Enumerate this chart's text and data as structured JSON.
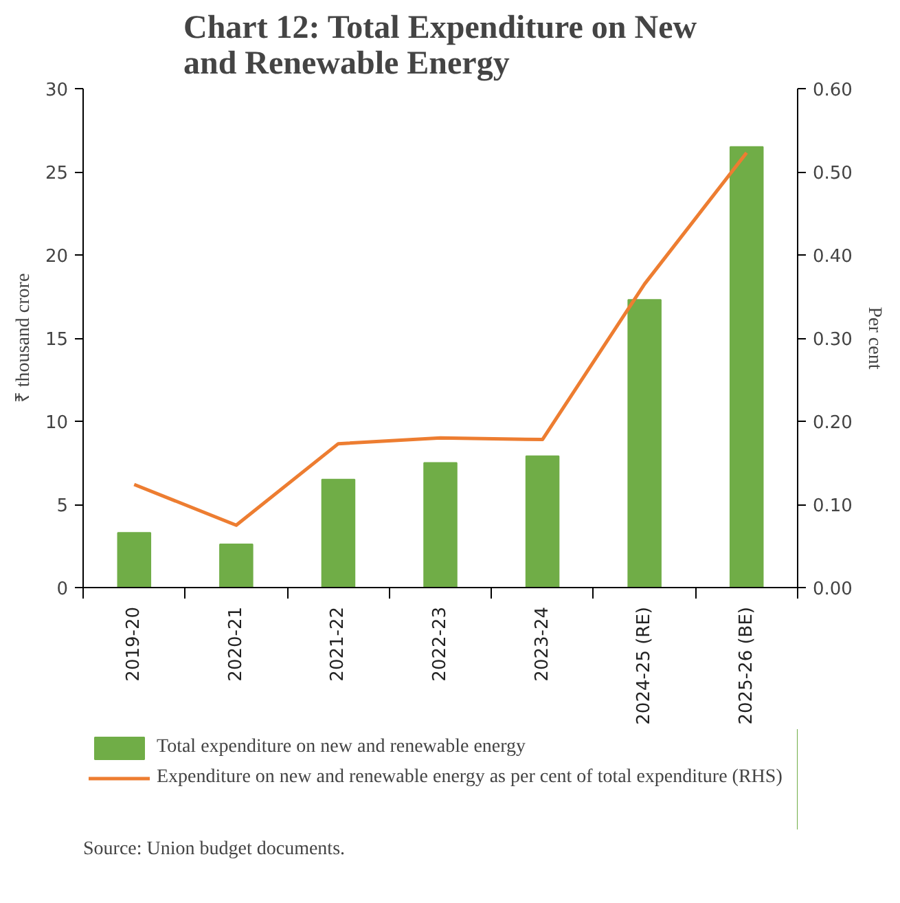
{
  "chart_data": {
    "type": "bar",
    "title": "Chart 12: Total Expenditure on New and Renewable Energy",
    "categories": [
      "2019-20",
      "2020-21",
      "2021-22",
      "2022-23",
      "2023-24",
      "2024-25 (RE)",
      "2025-26 (BE)"
    ],
    "series": [
      {
        "name": "Total expenditure on new and renewable energy",
        "color": "#70ad47",
        "values": [
          3.3,
          2.6,
          6.5,
          7.5,
          7.9,
          17.3,
          26.5
        ]
      },
      {
        "name": "Expenditure on new and renewable energy as per cent of total expenditure (RHS)",
        "type": "line",
        "axis": "y2",
        "color": "#ed7d31",
        "values": [
          0.124,
          0.075,
          0.173,
          0.18,
          0.178,
          0.365,
          0.523
        ]
      }
    ],
    "ylabel": "₹ thousand crore",
    "y2label": "Per cent",
    "ylim": [
      0,
      30
    ],
    "yticks": [
      0,
      5,
      10,
      15,
      20,
      25,
      30
    ],
    "y2lim": [
      0,
      0.6
    ],
    "y2ticks": [
      {
        "value": 0,
        "label": "0.00"
      },
      {
        "value": 0.1,
        "label": "0.10"
      },
      {
        "value": 0.2,
        "label": "0.20"
      },
      {
        "value": 0.3,
        "label": "0.30"
      },
      {
        "value": 0.4,
        "label": "0.40"
      },
      {
        "value": 0.5,
        "label": "0.50"
      },
      {
        "value": 0.6,
        "label": "0.60"
      }
    ],
    "legend": "bottom",
    "grid": false,
    "annotations": [
      "Source: Union budget documents."
    ]
  }
}
